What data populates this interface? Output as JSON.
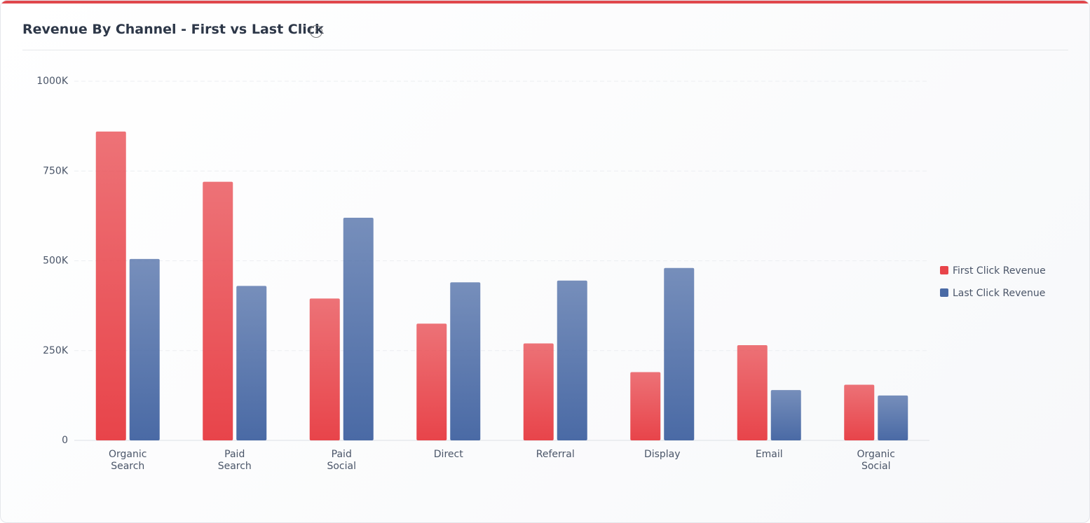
{
  "chart_data": {
    "type": "bar",
    "title": "Revenue By Channel - First vs Last Click",
    "categories": [
      "Organic Search",
      "Paid Search",
      "Paid Social",
      "Direct",
      "Referral",
      "Display",
      "Email",
      "Organic Social"
    ],
    "series": [
      {
        "name": "First Click Revenue",
        "color": "#e8444a",
        "values": [
          860000,
          720000,
          395000,
          325000,
          270000,
          190000,
          265000,
          155000
        ]
      },
      {
        "name": "Last Click Revenue",
        "color": "#4a6aa5",
        "values": [
          505000,
          430000,
          620000,
          440000,
          445000,
          480000,
          140000,
          125000
        ]
      }
    ],
    "ylim": [
      0,
      1000000
    ],
    "yticks": [
      0,
      {
        "value": 250000,
        "label": "250K"
      },
      {
        "value": 500000,
        "label": "500K"
      },
      {
        "value": 750000,
        "label": "750K"
      },
      {
        "value": 1000000,
        "label": "1000K"
      }
    ],
    "grid": true,
    "legend": "right"
  }
}
